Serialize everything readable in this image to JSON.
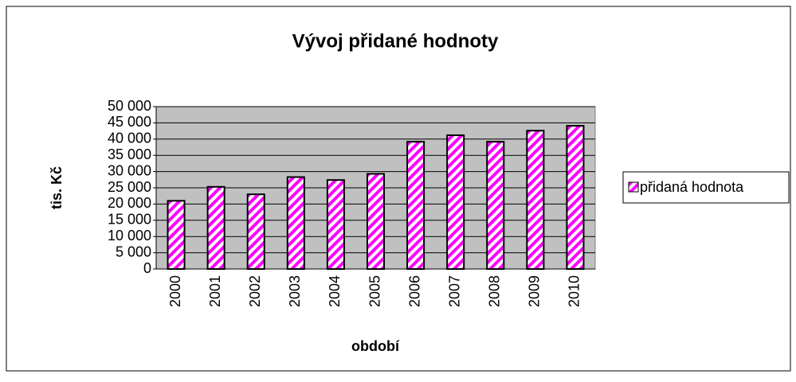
{
  "chart_data": {
    "type": "bar",
    "title": "Vývoj přidané hodnoty",
    "x_label": "období",
    "y_label": "tis. Kč",
    "categories": [
      "2000",
      "2001",
      "2002",
      "2003",
      "2004",
      "2005",
      "2006",
      "2007",
      "2008",
      "2009",
      "2010"
    ],
    "series": [
      {
        "name": "přidaná hodnota",
        "color": "#ff00ff",
        "values": [
          21000,
          25300,
          23000,
          28300,
          27400,
          29300,
          39200,
          41200,
          39200,
          42600,
          44100
        ]
      }
    ],
    "ylim": [
      0,
      50000
    ],
    "yticks": [
      0,
      {
        "value": 5000,
        "label": "5 000"
      },
      {
        "value": 10000,
        "label": "10 000"
      },
      {
        "value": 15000,
        "label": "15 000"
      },
      {
        "value": 20000,
        "label": "20 000"
      },
      {
        "value": 25000,
        "label": "25 000"
      },
      {
        "value": 30000,
        "label": "30 000"
      },
      {
        "value": 35000,
        "label": "35 000"
      },
      {
        "value": 40000,
        "label": "40 000"
      },
      {
        "value": 45000,
        "label": "45 000"
      },
      {
        "value": 50000,
        "label": "50 000"
      }
    ],
    "grid": true,
    "legend": "right"
  }
}
